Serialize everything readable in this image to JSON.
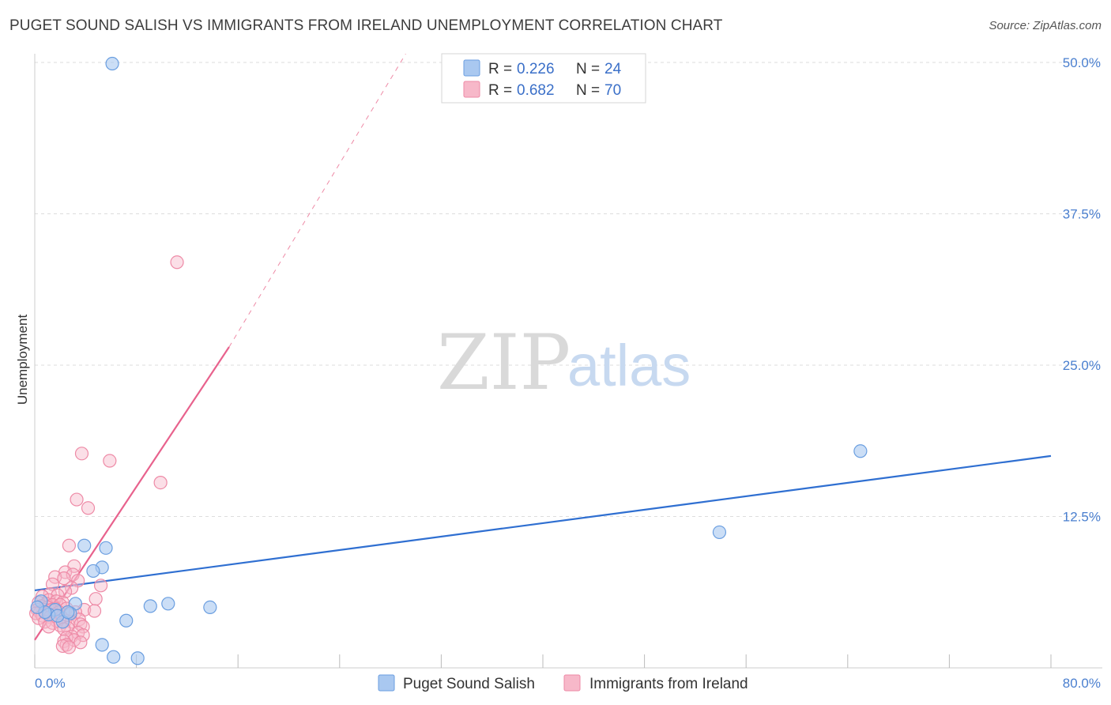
{
  "title": "PUGET SOUND SALISH VS IMMIGRANTS FROM IRELAND UNEMPLOYMENT CORRELATION CHART",
  "source": "Source: ZipAtlas.com",
  "colors": {
    "blue_fill": "#a9c8f0",
    "blue_stroke": "#6a9ee0",
    "blue_line": "#2f6fd1",
    "pink_fill": "#f7b8c9",
    "pink_stroke": "#ee8aa6",
    "pink_line": "#e8628d",
    "tick_text": "#4a7fcf",
    "grid": "#dddddd"
  },
  "legend": {
    "rows": [
      {
        "r_label": "R =",
        "r_value": "0.226",
        "n_label": "N =",
        "n_value": "24"
      },
      {
        "r_label": "R =",
        "r_value": "0.682",
        "n_label": "N =",
        "n_value": "70"
      }
    ]
  },
  "watermark": {
    "zip": "ZIP",
    "atlas": "atlas"
  },
  "chart_data": {
    "type": "scatter",
    "title": "PUGET SOUND SALISH VS IMMIGRANTS FROM IRELAND UNEMPLOYMENT CORRELATION CHART",
    "xlabel": "",
    "ylabel": "Unemployment",
    "xlim": [
      0,
      80
    ],
    "ylim": [
      0,
      52
    ],
    "x_tick_labels": [
      "0.0%",
      "80.0%"
    ],
    "y_ticks": [
      12.5,
      25.0,
      37.5,
      50.0
    ],
    "y_tick_labels": [
      "12.5%",
      "25.0%",
      "37.5%",
      "50.0%"
    ],
    "grid": true,
    "legend_position": "top-center",
    "series": [
      {
        "name": "Puget Sound Salish",
        "color": "#a9c8f0",
        "r": 0.226,
        "n": 24,
        "points": [
          [
            6.1,
            49.9
          ],
          [
            65.0,
            17.9
          ],
          [
            53.9,
            11.2
          ],
          [
            3.9,
            10.1
          ],
          [
            5.6,
            9.9
          ],
          [
            5.3,
            8.3
          ],
          [
            4.6,
            8.0
          ],
          [
            10.5,
            5.3
          ],
          [
            9.1,
            5.1
          ],
          [
            13.8,
            5.0
          ],
          [
            3.2,
            5.3
          ],
          [
            2.8,
            4.5
          ],
          [
            7.2,
            3.9
          ],
          [
            5.3,
            1.9
          ],
          [
            6.2,
            0.9
          ],
          [
            8.1,
            0.8
          ],
          [
            1.6,
            4.8
          ],
          [
            0.5,
            5.5
          ],
          [
            2.2,
            3.8
          ],
          [
            1.1,
            4.4
          ],
          [
            0.8,
            4.6
          ],
          [
            1.8,
            4.3
          ],
          [
            2.6,
            4.6
          ],
          [
            0.2,
            5.0
          ]
        ],
        "trend_line": {
          "x": [
            0,
            80
          ],
          "y": [
            6.4,
            17.5
          ]
        }
      },
      {
        "name": "Immigrants from Ireland",
        "color": "#f7b8c9",
        "r": 0.682,
        "n": 70,
        "points": [
          [
            11.2,
            33.5
          ],
          [
            3.7,
            17.7
          ],
          [
            5.9,
            17.1
          ],
          [
            9.9,
            15.3
          ],
          [
            3.3,
            13.9
          ],
          [
            4.2,
            13.2
          ],
          [
            2.7,
            10.1
          ],
          [
            3.1,
            8.4
          ],
          [
            2.4,
            7.9
          ],
          [
            3.0,
            7.7
          ],
          [
            1.6,
            7.5
          ],
          [
            2.3,
            7.4
          ],
          [
            3.4,
            7.2
          ],
          [
            1.4,
            6.9
          ],
          [
            5.2,
            6.8
          ],
          [
            2.9,
            6.6
          ],
          [
            2.4,
            6.3
          ],
          [
            1.2,
            6.1
          ],
          [
            1.8,
            6.0
          ],
          [
            0.6,
            5.9
          ],
          [
            4.8,
            5.7
          ],
          [
            1.1,
            5.6
          ],
          [
            1.7,
            5.5
          ],
          [
            2.2,
            5.4
          ],
          [
            0.3,
            5.4
          ],
          [
            0.9,
            5.3
          ],
          [
            1.4,
            5.2
          ],
          [
            2.0,
            5.2
          ],
          [
            0.5,
            5.1
          ],
          [
            1.0,
            5.0
          ],
          [
            1.6,
            4.9
          ],
          [
            2.5,
            4.9
          ],
          [
            0.2,
            4.8
          ],
          [
            0.8,
            4.8
          ],
          [
            1.3,
            4.8
          ],
          [
            3.9,
            4.8
          ],
          [
            4.7,
            4.7
          ],
          [
            0.4,
            4.6
          ],
          [
            1.9,
            4.6
          ],
          [
            3.2,
            4.6
          ],
          [
            0.1,
            4.5
          ],
          [
            0.9,
            4.5
          ],
          [
            1.5,
            4.4
          ],
          [
            2.8,
            4.4
          ],
          [
            0.6,
            4.3
          ],
          [
            1.2,
            4.2
          ],
          [
            2.1,
            4.2
          ],
          [
            0.3,
            4.1
          ],
          [
            3.5,
            4.0
          ],
          [
            1.7,
            3.9
          ],
          [
            2.4,
            3.9
          ],
          [
            0.8,
            3.8
          ],
          [
            2.9,
            3.8
          ],
          [
            1.4,
            3.7
          ],
          [
            3.6,
            3.6
          ],
          [
            2.0,
            3.5
          ],
          [
            1.1,
            3.4
          ],
          [
            3.8,
            3.4
          ],
          [
            2.6,
            3.3
          ],
          [
            2.3,
            3.2
          ],
          [
            3.4,
            2.9
          ],
          [
            3.8,
            2.7
          ],
          [
            2.9,
            2.6
          ],
          [
            2.5,
            2.5
          ],
          [
            3.1,
            2.3
          ],
          [
            2.3,
            2.2
          ],
          [
            3.6,
            2.1
          ],
          [
            2.5,
            1.9
          ],
          [
            2.2,
            1.8
          ],
          [
            2.7,
            1.7
          ]
        ],
        "trend_line": {
          "x": [
            0,
            15.3
          ],
          "y": [
            2.3,
            26.5
          ]
        },
        "trend_line_extended": {
          "x": [
            15.3,
            29.2
          ],
          "y": [
            26.5,
            50.7
          ]
        }
      }
    ]
  }
}
